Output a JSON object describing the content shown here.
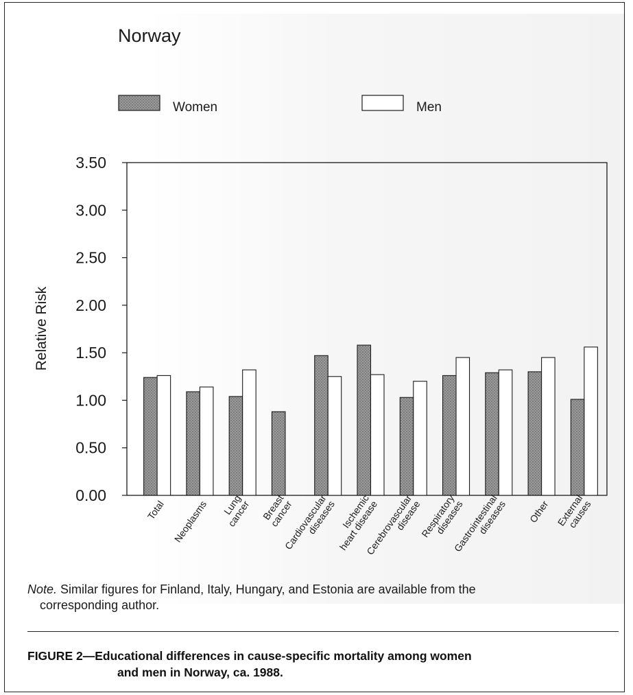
{
  "chart_data": {
    "type": "bar",
    "title": "Norway",
    "ylabel": "Relative Risk",
    "xlabel": "",
    "ylim": [
      0,
      3.5
    ],
    "yticks": [
      "0.00",
      "0.50",
      "1.00",
      "1.50",
      "2.00",
      "2.50",
      "3.00",
      "3.50"
    ],
    "legend_position": "top",
    "grid": false,
    "categories": [
      [
        "Total"
      ],
      [
        "Neoplasms"
      ],
      [
        "Lung",
        "cancer"
      ],
      [
        "Breast",
        "cancer"
      ],
      [
        "Cardiovascular",
        "diseases"
      ],
      [
        "Ischemic",
        "heart disease"
      ],
      [
        "Cerebrovascular",
        "disease"
      ],
      [
        "Respiratory",
        "diseases"
      ],
      [
        "Gastrointestinal",
        "diseases"
      ],
      [
        "Other"
      ],
      [
        "External",
        "causes"
      ]
    ],
    "series": [
      {
        "name": "Women",
        "fill": "#8a8a8a",
        "values": [
          1.24,
          1.09,
          1.04,
          0.88,
          1.47,
          1.58,
          1.03,
          1.26,
          1.29,
          1.3,
          1.01
        ]
      },
      {
        "name": "Men",
        "fill": "#ffffff",
        "values": [
          1.26,
          1.14,
          1.32,
          null,
          1.25,
          1.27,
          1.2,
          1.45,
          1.32,
          1.45,
          1.56
        ]
      }
    ]
  },
  "note": {
    "lead": "Note.",
    "text": " Similar figures for Finland, Italy, Hungary, and Estonia are available from the",
    "text2": "corresponding author."
  },
  "caption": {
    "line1": "FIGURE 2—Educational differences in cause-specific mortality among women",
    "line2": "and men in Norway, ca. 1988."
  },
  "colors": {
    "ink": "#1a1a1a",
    "women_fill": "#8a8a8a",
    "men_fill": "#ffffff"
  }
}
